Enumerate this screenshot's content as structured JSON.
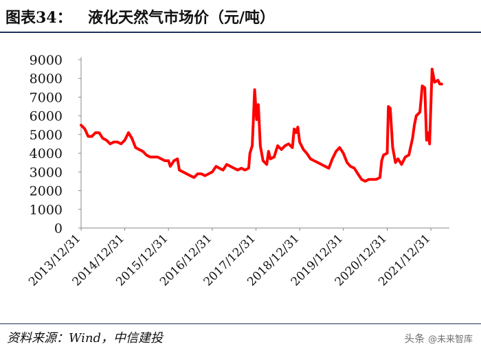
{
  "figure": {
    "label": "图表34：",
    "title": "液化天然气市场价（元/吨）"
  },
  "source": "资料来源：Wind，中信建投",
  "watermark": {
    "prefix": "头条",
    "handle": "@未来智库"
  },
  "colors": {
    "line": "#ff0000",
    "rule": "#1f2f5c",
    "axis": "#888888"
  },
  "chart_data": {
    "type": "line",
    "title": "液化天然气市场价（元/吨）",
    "xlabel": "",
    "ylabel": "",
    "ylim": [
      0,
      9000
    ],
    "yticks": [
      0,
      1000,
      2000,
      3000,
      4000,
      5000,
      6000,
      7000,
      8000,
      9000
    ],
    "xlim": [
      "2013-12-31",
      "2022-04-30"
    ],
    "xticks": [
      "2013/12/31",
      "2014/12/31",
      "2015/12/31",
      "2016/12/31",
      "2017/12/31",
      "2018/12/31",
      "2019/12/31",
      "2020/12/31",
      "2021/12/31"
    ],
    "grid": false,
    "legend": "none",
    "series": [
      {
        "name": "",
        "points": [
          [
            "2013-12-31",
            5500
          ],
          [
            "2014-01-31",
            5300
          ],
          [
            "2014-02-28",
            4900
          ],
          [
            "2014-03-31",
            4900
          ],
          [
            "2014-04-30",
            5100
          ],
          [
            "2014-05-31",
            5100
          ],
          [
            "2014-06-30",
            4800
          ],
          [
            "2014-07-31",
            4700
          ],
          [
            "2014-08-31",
            4500
          ],
          [
            "2014-09-30",
            4600
          ],
          [
            "2014-10-31",
            4600
          ],
          [
            "2014-11-30",
            4500
          ],
          [
            "2014-12-31",
            4700
          ],
          [
            "2015-01-31",
            5100
          ],
          [
            "2015-02-28",
            4800
          ],
          [
            "2015-03-31",
            4300
          ],
          [
            "2015-04-30",
            4200
          ],
          [
            "2015-05-31",
            4100
          ],
          [
            "2015-06-30",
            3900
          ],
          [
            "2015-07-31",
            3800
          ],
          [
            "2015-08-31",
            3800
          ],
          [
            "2015-09-30",
            3800
          ],
          [
            "2015-10-31",
            3700
          ],
          [
            "2015-11-30",
            3600
          ],
          [
            "2015-12-31",
            3600
          ],
          [
            "2016-01-15",
            3300
          ],
          [
            "2016-02-15",
            3600
          ],
          [
            "2016-03-15",
            3700
          ],
          [
            "2016-03-31",
            3100
          ],
          [
            "2016-04-30",
            3000
          ],
          [
            "2016-05-31",
            2900
          ],
          [
            "2016-06-30",
            2800
          ],
          [
            "2016-07-31",
            2700
          ],
          [
            "2016-08-31",
            2900
          ],
          [
            "2016-09-30",
            2900
          ],
          [
            "2016-10-31",
            2800
          ],
          [
            "2016-11-30",
            2900
          ],
          [
            "2016-12-31",
            3000
          ],
          [
            "2017-01-31",
            3300
          ],
          [
            "2017-02-28",
            3200
          ],
          [
            "2017-03-31",
            3100
          ],
          [
            "2017-04-30",
            3400
          ],
          [
            "2017-05-31",
            3300
          ],
          [
            "2017-06-30",
            3200
          ],
          [
            "2017-07-31",
            3100
          ],
          [
            "2017-08-31",
            3200
          ],
          [
            "2017-09-30",
            3100
          ],
          [
            "2017-10-31",
            3200
          ],
          [
            "2017-11-10",
            4000
          ],
          [
            "2017-11-30",
            4400
          ],
          [
            "2017-12-20",
            7400
          ],
          [
            "2018-01-05",
            5800
          ],
          [
            "2018-01-20",
            6600
          ],
          [
            "2018-02-05",
            4400
          ],
          [
            "2018-02-28",
            3600
          ],
          [
            "2018-03-31",
            3400
          ],
          [
            "2018-04-15",
            4100
          ],
          [
            "2018-04-30",
            3700
          ],
          [
            "2018-05-31",
            3800
          ],
          [
            "2018-06-30",
            4400
          ],
          [
            "2018-07-31",
            4200
          ],
          [
            "2018-08-31",
            4400
          ],
          [
            "2018-09-30",
            4500
          ],
          [
            "2018-10-31",
            4300
          ],
          [
            "2018-11-15",
            5300
          ],
          [
            "2018-11-30",
            5100
          ],
          [
            "2018-12-15",
            5400
          ],
          [
            "2018-12-31",
            4600
          ],
          [
            "2019-01-31",
            4200
          ],
          [
            "2019-02-28",
            4000
          ],
          [
            "2019-03-31",
            3700
          ],
          [
            "2019-04-30",
            3600
          ],
          [
            "2019-05-31",
            3500
          ],
          [
            "2019-06-30",
            3400
          ],
          [
            "2019-07-31",
            3300
          ],
          [
            "2019-08-31",
            3200
          ],
          [
            "2019-09-30",
            3700
          ],
          [
            "2019-10-31",
            4100
          ],
          [
            "2019-11-30",
            4300
          ],
          [
            "2019-12-31",
            4000
          ],
          [
            "2020-01-31",
            3500
          ],
          [
            "2020-02-28",
            3300
          ],
          [
            "2020-03-31",
            3200
          ],
          [
            "2020-04-30",
            2900
          ],
          [
            "2020-05-31",
            2600
          ],
          [
            "2020-06-30",
            2500
          ],
          [
            "2020-07-31",
            2600
          ],
          [
            "2020-08-31",
            2600
          ],
          [
            "2020-09-30",
            2600
          ],
          [
            "2020-10-31",
            2700
          ],
          [
            "2020-11-15",
            3600
          ],
          [
            "2020-11-30",
            3900
          ],
          [
            "2020-12-31",
            4000
          ],
          [
            "2021-01-10",
            6500
          ],
          [
            "2021-01-25",
            6400
          ],
          [
            "2021-02-15",
            4300
          ],
          [
            "2021-03-10",
            3500
          ],
          [
            "2021-03-31",
            3700
          ],
          [
            "2021-04-30",
            3400
          ],
          [
            "2021-05-31",
            3800
          ],
          [
            "2021-06-30",
            3900
          ],
          [
            "2021-07-31",
            4800
          ],
          [
            "2021-08-15",
            5500
          ],
          [
            "2021-08-31",
            6000
          ],
          [
            "2021-09-30",
            6200
          ],
          [
            "2021-10-20",
            7600
          ],
          [
            "2021-11-10",
            7500
          ],
          [
            "2021-11-25",
            4700
          ],
          [
            "2021-12-10",
            5100
          ],
          [
            "2021-12-20",
            4500
          ],
          [
            "2022-01-10",
            8500
          ],
          [
            "2022-01-31",
            7800
          ],
          [
            "2022-02-28",
            7900
          ],
          [
            "2022-03-15",
            7700
          ],
          [
            "2022-03-31",
            7700
          ]
        ]
      }
    ]
  }
}
